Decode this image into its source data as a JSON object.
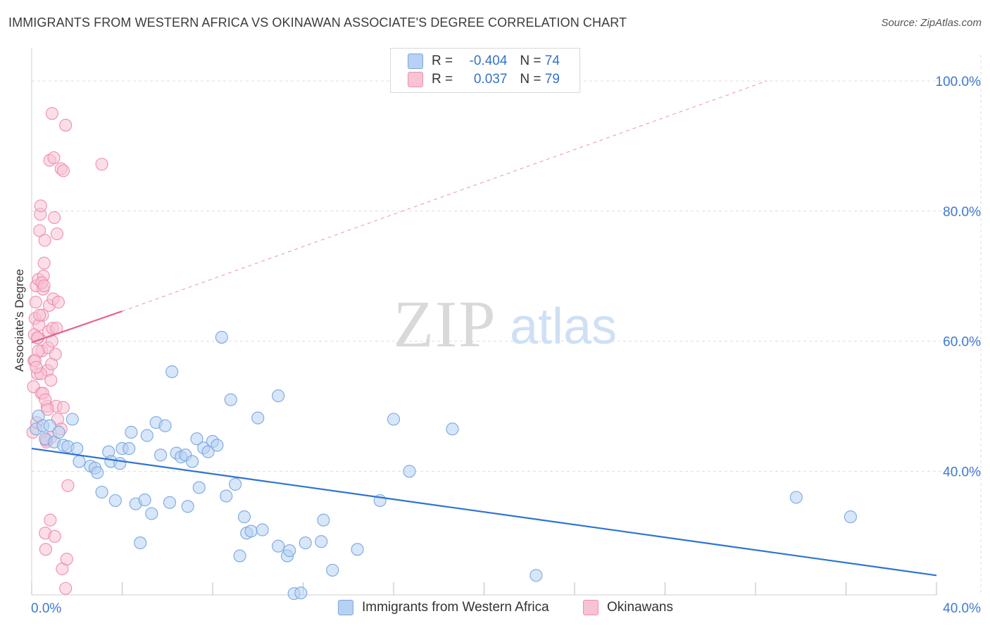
{
  "title": "IMMIGRANTS FROM WESTERN AFRICA VS OKINAWAN ASSOCIATE'S DEGREE CORRELATION CHART",
  "source": "Source: ZipAtlas.com",
  "watermark": {
    "zip": "ZIP",
    "atlas": "atlas"
  },
  "colors": {
    "blue_fill": "#b7d1f3",
    "blue_stroke": "#7aa7e0",
    "blue_line": "#2f73d0",
    "pink_fill": "#f8c3d3",
    "pink_stroke": "#ee8fae",
    "pink_line": "#e3648d",
    "tick_label": "#3f78cf",
    "grid": "#dedede"
  },
  "legend": {
    "rows": [
      {
        "r_label": "R =",
        "r_value": "-0.404",
        "n_label": "N =",
        "n_value": "74",
        "color": "#b7d1f3",
        "border": "#7aa7e0"
      },
      {
        "r_label": "R =",
        "r_value": "0.037",
        "n_label": "N =",
        "n_value": "79",
        "color": "#f8c3d3",
        "border": "#ee8fae"
      }
    ]
  },
  "bottom_legend": [
    {
      "label": "Immigrants from Western Africa",
      "color": "#b7d1f3",
      "border": "#7aa7e0"
    },
    {
      "label": "Okinawans",
      "color": "#f8c3d3",
      "border": "#ee8fae"
    }
  ],
  "chart_data": {
    "type": "scatter",
    "title": "IMMIGRANTS FROM WESTERN AFRICA VS OKINAWAN ASSOCIATE'S DEGREE CORRELATION CHART",
    "xlabel": "",
    "ylabel": "Associate's Degree",
    "xlim": [
      0,
      40
    ],
    "ylim": [
      21,
      104
    ],
    "x_tick_labels": [
      "0.0%",
      "40.0%"
    ],
    "y_ticks": [
      40,
      60,
      80,
      100
    ],
    "y_tick_labels": [
      "40.0%",
      "60.0%",
      "80.0%",
      "100.0%"
    ],
    "grid": true,
    "series": [
      {
        "name": "Immigrants from Western Africa",
        "color": "#b7d1f3",
        "trend": {
          "x": [
            0,
            40
          ],
          "y": [
            43.5,
            24.0
          ],
          "style": "solid"
        },
        "points": [
          [
            0.2,
            46.5
          ],
          [
            0.3,
            48.5
          ],
          [
            0.5,
            47
          ],
          [
            0.6,
            45
          ],
          [
            0.8,
            47
          ],
          [
            1.0,
            44.5
          ],
          [
            1.2,
            46
          ],
          [
            1.4,
            44
          ],
          [
            1.6,
            43.8
          ],
          [
            1.8,
            48
          ],
          [
            2.0,
            43.5
          ],
          [
            2.1,
            41.5
          ],
          [
            2.6,
            40.8
          ],
          [
            2.8,
            40.5
          ],
          [
            2.9,
            39.8
          ],
          [
            3.1,
            36.8
          ],
          [
            3.4,
            43
          ],
          [
            3.5,
            41.5
          ],
          [
            3.7,
            35.5
          ],
          [
            3.9,
            41.2
          ],
          [
            4.0,
            43.5
          ],
          [
            4.3,
            43.5
          ],
          [
            4.4,
            46
          ],
          [
            4.6,
            35
          ],
          [
            4.8,
            29
          ],
          [
            5.0,
            35.6
          ],
          [
            5.1,
            45.5
          ],
          [
            5.3,
            33.5
          ],
          [
            5.5,
            47.5
          ],
          [
            5.7,
            42.5
          ],
          [
            5.9,
            47
          ],
          [
            6.1,
            35.2
          ],
          [
            6.2,
            55.3
          ],
          [
            6.4,
            42.8
          ],
          [
            6.6,
            42.2
          ],
          [
            6.8,
            42.5
          ],
          [
            6.9,
            34.6
          ],
          [
            7.1,
            41.5
          ],
          [
            7.3,
            45
          ],
          [
            7.4,
            37.5
          ],
          [
            7.6,
            43.6
          ],
          [
            7.8,
            43
          ],
          [
            8.0,
            44.6
          ],
          [
            8.2,
            44
          ],
          [
            8.4,
            60.6
          ],
          [
            8.6,
            36.2
          ],
          [
            8.8,
            51
          ],
          [
            9.0,
            38
          ],
          [
            9.2,
            27
          ],
          [
            9.4,
            33
          ],
          [
            9.5,
            30.5
          ],
          [
            9.7,
            30.8
          ],
          [
            10.0,
            48.2
          ],
          [
            10.2,
            31
          ],
          [
            10.9,
            51.6
          ],
          [
            10.9,
            28.5
          ],
          [
            11.3,
            27
          ],
          [
            11.4,
            27.8
          ],
          [
            11.6,
            21.2
          ],
          [
            11.9,
            21.3
          ],
          [
            12.1,
            29
          ],
          [
            12.8,
            29.2
          ],
          [
            12.9,
            32.5
          ],
          [
            13.3,
            24.8
          ],
          [
            14.4,
            28
          ],
          [
            15.4,
            35.5
          ],
          [
            16.0,
            48
          ],
          [
            16.7,
            40
          ],
          [
            18.6,
            46.5
          ],
          [
            22.3,
            24
          ],
          [
            33.8,
            36
          ],
          [
            36.2,
            33
          ]
        ]
      },
      {
        "name": "Okinawans",
        "color": "#f8c3d3",
        "trend": {
          "x": [
            0,
            4
          ],
          "y": [
            59.8,
            64.6
          ],
          "style": "solid",
          "extension": {
            "x": [
              4,
              32.5
            ],
            "y": [
              64.6,
              100.0
            ],
            "style": "dashed"
          }
        },
        "points": [
          [
            0.05,
            46
          ],
          [
            0.08,
            53
          ],
          [
            0.1,
            57
          ],
          [
            0.12,
            61
          ],
          [
            0.15,
            63.5
          ],
          [
            0.18,
            66
          ],
          [
            0.2,
            68.5
          ],
          [
            0.22,
            47.5
          ],
          [
            0.25,
            55
          ],
          [
            0.28,
            60.5
          ],
          [
            0.3,
            69.5
          ],
          [
            0.32,
            62.5
          ],
          [
            0.35,
            77
          ],
          [
            0.38,
            79.5
          ],
          [
            0.4,
            80.8
          ],
          [
            0.42,
            52
          ],
          [
            0.45,
            58.5
          ],
          [
            0.48,
            64
          ],
          [
            0.5,
            68
          ],
          [
            0.52,
            70
          ],
          [
            0.55,
            72
          ],
          [
            0.58,
            75.5
          ],
          [
            0.6,
            30.5
          ],
          [
            0.62,
            28
          ],
          [
            0.65,
            44.5
          ],
          [
            0.68,
            50
          ],
          [
            0.7,
            55.5
          ],
          [
            0.72,
            59
          ],
          [
            0.75,
            61.5
          ],
          [
            0.78,
            65.5
          ],
          [
            0.8,
            87.8
          ],
          [
            0.82,
            32.5
          ],
          [
            0.85,
            54
          ],
          [
            0.88,
            56.5
          ],
          [
            0.9,
            60
          ],
          [
            0.92,
            62
          ],
          [
            0.95,
            66.5
          ],
          [
            0.98,
            88.2
          ],
          [
            1.0,
            79
          ],
          [
            1.02,
            30
          ],
          [
            1.05,
            58
          ],
          [
            1.08,
            50
          ],
          [
            1.1,
            62
          ],
          [
            1.12,
            76.5
          ],
          [
            1.15,
            48
          ],
          [
            1.18,
            66
          ],
          [
            0.3,
            58.5
          ],
          [
            0.4,
            55
          ],
          [
            0.5,
            52
          ],
          [
            0.6,
            51
          ],
          [
            0.7,
            49.5
          ],
          [
            0.35,
            64
          ],
          [
            0.45,
            69
          ],
          [
            0.55,
            68.5
          ],
          [
            0.25,
            60.5
          ],
          [
            0.9,
            95
          ],
          [
            1.3,
            46.5
          ],
          [
            1.3,
            86.5
          ],
          [
            1.35,
            25
          ],
          [
            1.4,
            86.2
          ],
          [
            1.5,
            93.2
          ],
          [
            1.4,
            49.8
          ],
          [
            1.5,
            22
          ],
          [
            1.55,
            26.5
          ],
          [
            1.6,
            37.8
          ],
          [
            3.1,
            87.2
          ],
          [
            0.15,
            57
          ],
          [
            0.2,
            56
          ],
          [
            0.85,
            45.2
          ],
          [
            0.65,
            44.8
          ]
        ]
      }
    ]
  }
}
